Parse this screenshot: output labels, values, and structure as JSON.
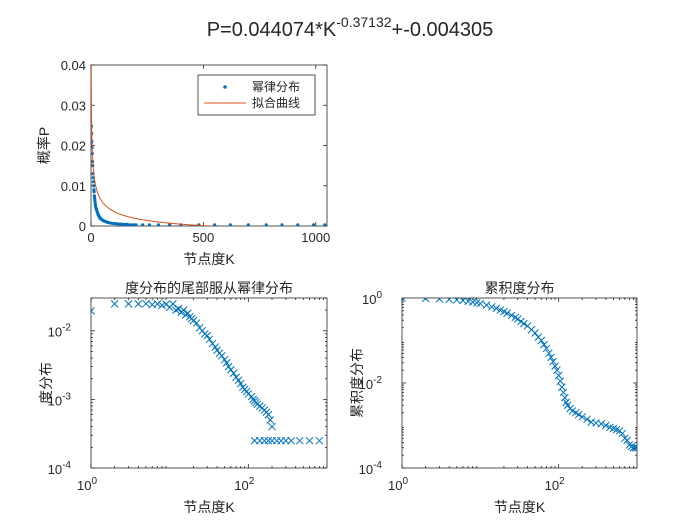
{
  "figure_title": {
    "prefix": "P=0.044074*K",
    "exponent": "-0.37132",
    "suffix": "+-0.004305"
  },
  "colors": {
    "data": "#0072BD",
    "fit": "#D95319",
    "axis": "#262626"
  },
  "chart_data": [
    {
      "type": "scatter",
      "title": "",
      "xlabel": "节点度K",
      "ylabel": "概率P",
      "xlim": [
        0,
        1050
      ],
      "ylim": [
        0,
        0.04
      ],
      "xticks": [
        0,
        500,
        1000
      ],
      "xtick_labels": [
        "0",
        "500",
        "1000"
      ],
      "yticks": [
        0,
        0.01,
        0.02,
        0.03,
        0.04
      ],
      "ytick_labels": [
        "0",
        "0.01",
        "0.02",
        "0.03",
        "0.04"
      ],
      "grid": false,
      "legend_position": "top-right",
      "series": [
        {
          "name": "幂律分布",
          "marker": "dot",
          "points": [
            [
              1,
              0.0205
            ],
            [
              2,
              0.0248
            ],
            [
              3,
              0.023
            ],
            [
              4,
              0.021
            ],
            [
              5,
              0.0195
            ],
            [
              6,
              0.018
            ],
            [
              7,
              0.016
            ],
            [
              8,
              0.015
            ],
            [
              9,
              0.013
            ],
            [
              10,
              0.012
            ],
            [
              11,
              0.011
            ],
            [
              12,
              0.01
            ],
            [
              13,
              0.009
            ],
            [
              14,
              0.0085
            ],
            [
              15,
              0.0075
            ],
            [
              16,
              0.007
            ],
            [
              17,
              0.0065
            ],
            [
              18,
              0.006
            ],
            [
              19,
              0.0055
            ],
            [
              20,
              0.005
            ],
            [
              22,
              0.0045
            ],
            [
              24,
              0.0042
            ],
            [
              26,
              0.0038
            ],
            [
              28,
              0.0034
            ],
            [
              30,
              0.0031
            ],
            [
              32,
              0.0028
            ],
            [
              35,
              0.0025
            ],
            [
              38,
              0.0022
            ],
            [
              40,
              0.002
            ],
            [
              43,
              0.0018
            ],
            [
              46,
              0.0017
            ],
            [
              50,
              0.0015
            ],
            [
              55,
              0.0013
            ],
            [
              60,
              0.0012
            ],
            [
              65,
              0.0011
            ],
            [
              70,
              0.001
            ],
            [
              75,
              0.0009
            ],
            [
              80,
              0.0008
            ],
            [
              90,
              0.0007
            ],
            [
              100,
              0.0006
            ],
            [
              110,
              0.0006
            ],
            [
              120,
              0.0005
            ],
            [
              130,
              0.0005
            ],
            [
              140,
              0.0004
            ],
            [
              150,
              0.0004
            ],
            [
              160,
              0.0004
            ],
            [
              170,
              0.0003
            ],
            [
              180,
              0.0003
            ],
            [
              190,
              0.0003
            ],
            [
              200,
              0.0003
            ],
            [
              230,
              0.0003
            ],
            [
              260,
              0.0003
            ],
            [
              300,
              0.0003
            ],
            [
              350,
              0.0003
            ],
            [
              400,
              0.0003
            ],
            [
              480,
              0.0003
            ],
            [
              550,
              0.0003
            ],
            [
              620,
              0.0003
            ],
            [
              700,
              0.0003
            ],
            [
              780,
              0.0003
            ],
            [
              850,
              0.0003
            ],
            [
              920,
              0.0003
            ],
            [
              990,
              0.0003
            ],
            [
              1040,
              0.0003
            ]
          ]
        },
        {
          "name": "拟合曲线",
          "marker": "line",
          "fit": {
            "a": 0.044074,
            "b": -0.37132,
            "c": -0.004305
          },
          "x_start": 1,
          "x_end": 1040
        }
      ]
    },
    {
      "type": "scatter",
      "title": "度分布的尾部服从幂律分布",
      "xlabel": "节点度K",
      "ylabel": "度分布",
      "xscale": "log",
      "yscale": "log",
      "xlim": [
        1,
        1000
      ],
      "ylim": [
        0.0001,
        0.03
      ],
      "xticks": [
        1,
        100
      ],
      "xtick_labels": [
        {
          "base": "10",
          "exp": "0"
        },
        {
          "base": "10",
          "exp": "2"
        }
      ],
      "yticks": [
        0.0001,
        0.001,
        0.01
      ],
      "ytick_labels": [
        {
          "base": "10",
          "exp": "-4"
        },
        {
          "base": "10",
          "exp": "-3"
        },
        {
          "base": "10",
          "exp": "-2"
        }
      ],
      "grid": false,
      "series": [
        {
          "name": "",
          "marker": "x",
          "points": [
            [
              1,
              0.0195
            ],
            [
              2,
              0.0246
            ],
            [
              3,
              0.0246
            ],
            [
              4,
              0.0246
            ],
            [
              5,
              0.0248
            ],
            [
              6,
              0.024
            ],
            [
              7,
              0.0246
            ],
            [
              8,
              0.0235
            ],
            [
              9,
              0.0243
            ],
            [
              10,
              0.022
            ],
            [
              11,
              0.0246
            ],
            [
              12,
              0.02
            ],
            [
              13,
              0.021
            ],
            [
              14,
              0.0185
            ],
            [
              15,
              0.02
            ],
            [
              16,
              0.017
            ],
            [
              17,
              0.018
            ],
            [
              18,
              0.016
            ],
            [
              19,
              0.015
            ],
            [
              20,
              0.014
            ],
            [
              22,
              0.013
            ],
            [
              24,
              0.011
            ],
            [
              26,
              0.01
            ],
            [
              28,
              0.009
            ],
            [
              30,
              0.0085
            ],
            [
              32,
              0.0075
            ],
            [
              35,
              0.0065
            ],
            [
              38,
              0.0058
            ],
            [
              40,
              0.0052
            ],
            [
              43,
              0.0047
            ],
            [
              46,
              0.0043
            ],
            [
              50,
              0.0038
            ],
            [
              53,
              0.0034
            ],
            [
              56,
              0.003
            ],
            [
              60,
              0.0027
            ],
            [
              65,
              0.0024
            ],
            [
              70,
              0.0021
            ],
            [
              75,
              0.0019
            ],
            [
              80,
              0.0017
            ],
            [
              85,
              0.0015
            ],
            [
              90,
              0.0014
            ],
            [
              95,
              0.0013
            ],
            [
              100,
              0.0012
            ],
            [
              110,
              0.0011
            ],
            [
              115,
              0.001
            ],
            [
              120,
              0.00095
            ],
            [
              125,
              0.0009
            ],
            [
              130,
              0.00085
            ],
            [
              140,
              0.0008
            ],
            [
              150,
              0.00075
            ],
            [
              160,
              0.0007
            ],
            [
              170,
              0.00065
            ],
            [
              180,
              0.0006
            ],
            [
              190,
              0.0005
            ],
            [
              200,
              0.0004
            ],
            [
              120,
              0.00025
            ],
            [
              140,
              0.00025
            ],
            [
              160,
              0.00025
            ],
            [
              180,
              0.00025
            ],
            [
              200,
              0.00025
            ],
            [
              230,
              0.00025
            ],
            [
              260,
              0.00025
            ],
            [
              300,
              0.00025
            ],
            [
              350,
              0.00025
            ],
            [
              450,
              0.00025
            ],
            [
              600,
              0.00025
            ],
            [
              800,
              0.00025
            ]
          ]
        }
      ]
    },
    {
      "type": "scatter",
      "title": "累积度分布",
      "xlabel": "节点度K",
      "ylabel": "累积度分布",
      "xscale": "log",
      "yscale": "log",
      "xlim": [
        1,
        1000
      ],
      "ylim": [
        0.0001,
        1
      ],
      "xticks": [
        1,
        100
      ],
      "xtick_labels": [
        {
          "base": "10",
          "exp": "0"
        },
        {
          "base": "10",
          "exp": "2"
        }
      ],
      "yticks": [
        0.0001,
        0.01,
        1
      ],
      "ytick_labels": [
        {
          "base": "10",
          "exp": "-4"
        },
        {
          "base": "10",
          "exp": "-2"
        },
        {
          "base": "10",
          "exp": "0"
        }
      ],
      "grid": false,
      "series": [
        {
          "name": "",
          "marker": "x",
          "points": [
            [
              1,
              1.0
            ],
            [
              2,
              0.98
            ],
            [
              3,
              0.95
            ],
            [
              4,
              0.93
            ],
            [
              5,
              0.9
            ],
            [
              6,
              0.87
            ],
            [
              7,
              0.84
            ],
            [
              8,
              0.8
            ],
            [
              9,
              0.77
            ],
            [
              10,
              0.74
            ],
            [
              12,
              0.68
            ],
            [
              14,
              0.62
            ],
            [
              16,
              0.57
            ],
            [
              18,
              0.52
            ],
            [
              20,
              0.48
            ],
            [
              22,
              0.44
            ],
            [
              25,
              0.39
            ],
            [
              28,
              0.35
            ],
            [
              30,
              0.32
            ],
            [
              33,
              0.28
            ],
            [
              36,
              0.25
            ],
            [
              40,
              0.22
            ],
            [
              45,
              0.18
            ],
            [
              50,
              0.15
            ],
            [
              55,
              0.12
            ],
            [
              60,
              0.1
            ],
            [
              65,
              0.08
            ],
            [
              70,
              0.065
            ],
            [
              75,
              0.05
            ],
            [
              80,
              0.04
            ],
            [
              85,
              0.032
            ],
            [
              90,
              0.025
            ],
            [
              95,
              0.02
            ],
            [
              100,
              0.015
            ],
            [
              105,
              0.011
            ],
            [
              110,
              0.008
            ],
            [
              115,
              0.006
            ],
            [
              120,
              0.0045
            ],
            [
              125,
              0.0035
            ],
            [
              130,
              0.003
            ],
            [
              140,
              0.0025
            ],
            [
              150,
              0.0022
            ],
            [
              165,
              0.002
            ],
            [
              180,
              0.0018
            ],
            [
              200,
              0.0016
            ],
            [
              230,
              0.0014
            ],
            [
              260,
              0.0012
            ],
            [
              300,
              0.00115
            ],
            [
              350,
              0.0011
            ],
            [
              400,
              0.001
            ],
            [
              450,
              0.0009
            ],
            [
              500,
              0.00085
            ],
            [
              550,
              0.0008
            ],
            [
              600,
              0.00075
            ],
            [
              650,
              0.00065
            ],
            [
              700,
              0.0005
            ],
            [
              750,
              0.00045
            ],
            [
              800,
              0.00035
            ],
            [
              850,
              0.00032
            ],
            [
              900,
              0.0003
            ],
            [
              950,
              0.0003
            ],
            [
              1000,
              0.0003
            ]
          ]
        }
      ]
    }
  ]
}
